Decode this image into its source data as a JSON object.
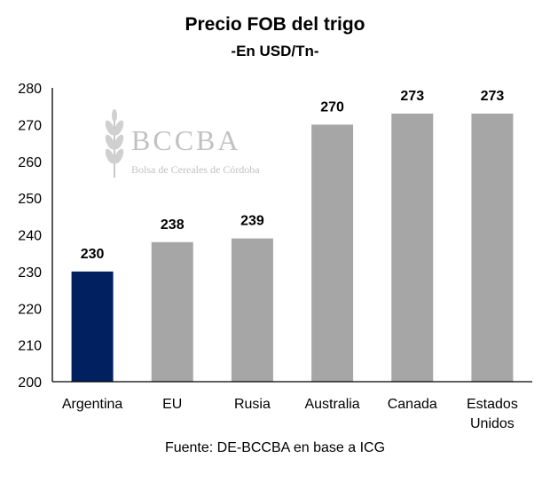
{
  "chart_data": {
    "type": "bar",
    "title": "Precio FOB del trigo",
    "subtitle": "-En USD/Tn-",
    "categories": [
      "Argentina",
      "EU",
      "Rusia",
      "Australia",
      "Canada",
      "Estados Unidos"
    ],
    "category_lines": [
      [
        "Argentina"
      ],
      [
        "EU"
      ],
      [
        "Rusia"
      ],
      [
        "Australia"
      ],
      [
        "Canada"
      ],
      [
        "Estados",
        "Unidos"
      ]
    ],
    "values": [
      230,
      238,
      239,
      270,
      273,
      273
    ],
    "data_labels": [
      "230",
      "238",
      "239",
      "270",
      "273",
      "273"
    ],
    "ylim": [
      200,
      280
    ],
    "yticks": [
      200,
      210,
      220,
      230,
      240,
      250,
      260,
      270,
      280
    ],
    "grid": false,
    "legend": "none",
    "bar_colors": [
      "#002060",
      "#a6a6a6",
      "#a6a6a6",
      "#a6a6a6",
      "#a6a6a6",
      "#a6a6a6"
    ],
    "source": "Fuente: DE-BCCBA en base a ICG"
  },
  "watermark": {
    "name": "BCCBA",
    "subtitle": "Bolsa de Cereales de Córdoba",
    "icon": "wheat-icon"
  }
}
